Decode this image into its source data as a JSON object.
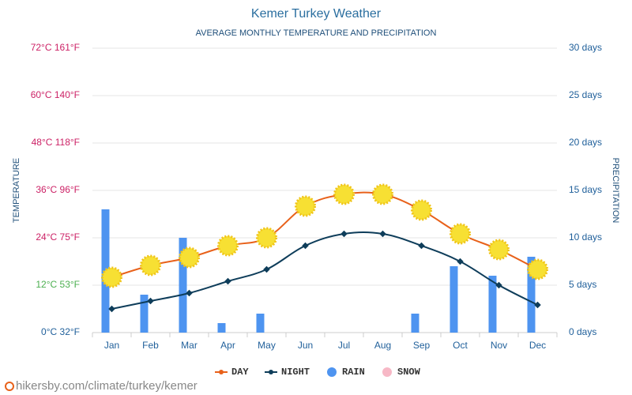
{
  "chart_data": {
    "type": "line_bar",
    "title": "Kemer Turkey Weather",
    "subtitle": "AVERAGE MONTHLY TEMPERATURE AND PRECIPITATION",
    "y_label": "TEMPERATURE",
    "y2_label": "PRECIPITATION",
    "source": "hikersby.com/climate/turkey/kemer",
    "categories": [
      "Jan",
      "Feb",
      "Mar",
      "Apr",
      "May",
      "Jun",
      "Jul",
      "Aug",
      "Sep",
      "Oct",
      "Nov",
      "Dec"
    ],
    "series": [
      {
        "name": "DAY",
        "type": "line",
        "color": "#e8611a",
        "values": [
          14,
          17,
          19,
          22,
          24,
          32,
          35,
          35,
          31,
          25,
          21,
          16
        ]
      },
      {
        "name": "NIGHT",
        "type": "line",
        "color": "#0e3d5a",
        "values": [
          6,
          8,
          10,
          13,
          16,
          22,
          25,
          25,
          22,
          18,
          12,
          7
        ]
      },
      {
        "name": "RAIN",
        "type": "bar",
        "axis": "y2",
        "color": "#4e94f0",
        "values": [
          13,
          4,
          10,
          1,
          2,
          0,
          0,
          0,
          2,
          7,
          6,
          8
        ]
      },
      {
        "name": "SNOW",
        "type": "bar",
        "axis": "y2",
        "color": "#f7b8c6",
        "values": [
          0,
          0,
          0,
          0,
          0,
          0,
          0,
          0,
          0,
          0,
          0,
          0
        ]
      }
    ],
    "ylim": [
      0,
      72
    ],
    "yticks": [
      {
        "value": 0,
        "label": "0°C 32°F"
      },
      {
        "value": 12,
        "label": "12°C 53°F"
      },
      {
        "value": 24,
        "label": "24°C 75°F"
      },
      {
        "value": 36,
        "label": "36°C 96°F"
      },
      {
        "value": 48,
        "label": "48°C 118°F"
      },
      {
        "value": 60,
        "label": "60°C 140°F"
      },
      {
        "value": 72,
        "label": "72°C 161°F"
      }
    ],
    "ytick_colors": [
      "#1f5f9a",
      "#4caf50",
      "#cc2266",
      "#cc2266",
      "#cc2266",
      "#cc2266",
      "#cc2266"
    ],
    "y2lim": [
      0,
      30
    ],
    "y2ticks": [
      {
        "value": 0,
        "label": "0 days"
      },
      {
        "value": 5,
        "label": "5 days"
      },
      {
        "value": 10,
        "label": "10 days"
      },
      {
        "value": 15,
        "label": "15 days"
      },
      {
        "value": 20,
        "label": "20 days"
      },
      {
        "value": 25,
        "label": "25 days"
      },
      {
        "value": 30,
        "label": "30 days"
      }
    ],
    "grid": true
  }
}
